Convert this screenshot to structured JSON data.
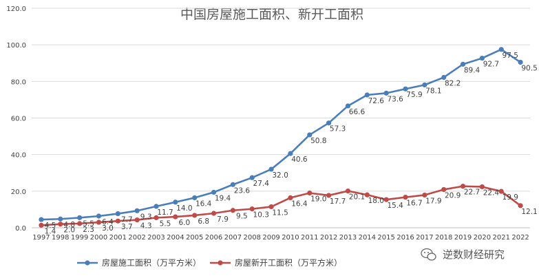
{
  "chart_data": {
    "type": "line",
    "title": "中国房屋施工面积、新开工面积",
    "categories": [
      "1997",
      "1998",
      "1999",
      "2000",
      "2001",
      "2002",
      "2003",
      "2004",
      "2005",
      "2006",
      "2007",
      "2008",
      "2009",
      "2010",
      "2011",
      "2012",
      "2013",
      "2014",
      "2015",
      "2016",
      "2017",
      "2018",
      "2019",
      "2020",
      "2021",
      "2022"
    ],
    "ylim": [
      0,
      120
    ],
    "yticks": [
      "0.0",
      "20.0",
      "40.0",
      "60.0",
      "80.0",
      "100.0",
      "120.0"
    ],
    "grid": true,
    "legend_position": "bottom",
    "series": [
      {
        "name": "房屋施工面积（万平方米）",
        "color": "#4a7ebb",
        "values": [
          4.5,
          4.8,
          5.5,
          6.4,
          7.7,
          9.3,
          11.7,
          14.0,
          16.4,
          19.4,
          23.6,
          27.4,
          32.0,
          40.6,
          50.8,
          57.3,
          66.6,
          72.6,
          73.6,
          75.9,
          78.1,
          82.2,
          89.4,
          92.7,
          97.5,
          90.5
        ],
        "labels": [
          "4.5",
          "4.8",
          "5.5",
          "6.4",
          "7.7",
          "9.3",
          "11.7",
          "14.0",
          "16.4",
          "19.4",
          "23.6",
          "27.4",
          "32.0",
          "40.6",
          "50.8",
          "57.3",
          "66.6",
          "72.6",
          "73.6",
          "75.9",
          "78.1",
          "82.2",
          "89.4",
          "92.7",
          "97.5",
          "90.5"
        ]
      },
      {
        "name": "房屋新开工面积（万平方米）",
        "color": "#be4b48",
        "values": [
          1.4,
          2.0,
          2.3,
          3.0,
          3.7,
          4.3,
          5.5,
          6.0,
          6.8,
          7.9,
          9.5,
          10.3,
          11.5,
          16.4,
          19.0,
          17.7,
          20.1,
          18.0,
          15.4,
          16.7,
          17.9,
          20.9,
          22.7,
          22.4,
          19.9,
          12.1
        ],
        "labels": [
          "1.4",
          "2.0",
          "2.3",
          "3.0",
          "3.7",
          "4.3",
          "5.5",
          "6.0",
          "6.8",
          "7.9",
          "9.5",
          "10.3",
          "11.5",
          "16.4",
          "19.0",
          "17.7",
          "20.1",
          "18.0",
          "15.4",
          "16.7",
          "17.9",
          "20.9",
          "22.7",
          "22.4",
          "19.9",
          "12.1"
        ]
      }
    ]
  },
  "watermark": {
    "icon": "wechat-icon",
    "text": "逆数财经研究"
  }
}
